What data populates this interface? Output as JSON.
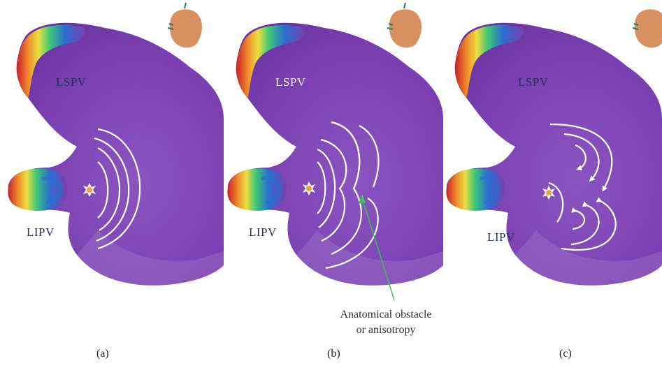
{
  "panels": [
    {
      "caption": "(a)",
      "lspv_label": "LSPV",
      "lipv_label": "LIPV"
    },
    {
      "caption": "(b)",
      "lspv_label": "LSPV",
      "lipv_label": "LIPV"
    },
    {
      "caption": "(c)",
      "lspv_label": "LSPV",
      "lipv_label": "LIPV"
    }
  ],
  "annotation": {
    "line1": "Anatomical obstacle",
    "line2": "or anisotropy"
  },
  "colors": {
    "atrium": "#7a3fb0",
    "atrium_light": "#9a6cc6",
    "annotation_arrow": "#3cc05a",
    "wavefront": "#ffffff",
    "focal_source": "#f2a23c"
  },
  "icons": [
    "focal-source-icon",
    "orientation-heart-icon"
  ]
}
